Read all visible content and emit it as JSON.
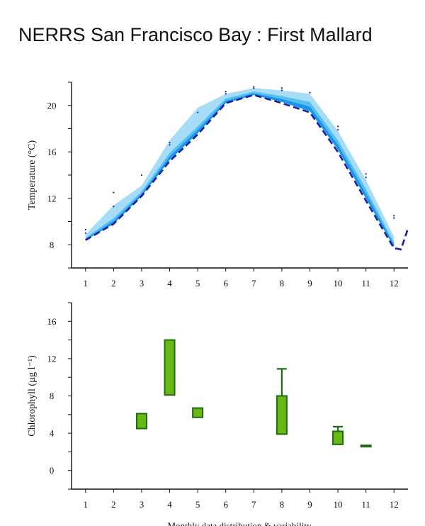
{
  "title": "NERRS San Francisco Bay : First Mallard",
  "caption": "Monthly data distribution & variability",
  "colors": {
    "band_light": "#a6dcf5",
    "band_mid": "#56bff0",
    "band_dark": "#1797e6",
    "dashed_line": "#1b1fa8",
    "dots": "#1b1fa8",
    "box_fill": "#6ab814",
    "box_stroke": "#1d6b12"
  },
  "chart_data": [
    {
      "type": "area",
      "ylabel": "Temperature (°C)",
      "xlabel": "",
      "x_ticks": [
        1,
        2,
        3,
        4,
        5,
        6,
        7,
        8,
        9,
        10,
        11,
        12
      ],
      "y_ticks": [
        8,
        12,
        16,
        20
      ],
      "xlim": [
        0.5,
        12.5
      ],
      "ylim": [
        6,
        22
      ],
      "x": [
        1,
        2,
        3,
        4,
        5,
        6,
        7,
        8,
        9,
        10,
        11,
        12
      ],
      "series": [
        {
          "values_min": [
            8.4,
            9.8,
            12.2,
            15.3,
            17.6,
            20.2,
            20.9,
            20.3,
            19.5,
            16.2,
            12.0,
            7.8
          ]
        },
        {
          "values_max": [
            8.9,
            11.4,
            13.1,
            17.0,
            19.8,
            21.0,
            21.5,
            21.3,
            21.0,
            17.8,
            13.6,
            8.7
          ]
        },
        {
          "values_mid": [
            8.6,
            10.3,
            12.6,
            15.9,
            18.2,
            20.6,
            21.2,
            20.8,
            20.3,
            17.0,
            12.8,
            8.2
          ]
        }
      ],
      "dashed_line": {
        "x": [
          1,
          2,
          3,
          4,
          5,
          6,
          7,
          8,
          9,
          10,
          11,
          12,
          12.25,
          12.5
        ],
        "y": [
          8.4,
          9.8,
          12.2,
          15.2,
          17.5,
          20.2,
          20.9,
          20.2,
          19.4,
          16.0,
          11.8,
          7.7,
          7.6,
          9.4
        ]
      },
      "scatter_points": [
        {
          "x": 1,
          "y": 9.3
        },
        {
          "x": 1,
          "y": 9.0
        },
        {
          "x": 2,
          "y": 12.5
        },
        {
          "x": 2,
          "y": 11.3
        },
        {
          "x": 3,
          "y": 14.0
        },
        {
          "x": 4,
          "y": 16.8
        },
        {
          "x": 4,
          "y": 16.6
        },
        {
          "x": 5,
          "y": 19.4
        },
        {
          "x": 6,
          "y": 21.2
        },
        {
          "x": 6,
          "y": 21.0
        },
        {
          "x": 7,
          "y": 21.6
        },
        {
          "x": 7,
          "y": 21.5
        },
        {
          "x": 8,
          "y": 21.5
        },
        {
          "x": 8,
          "y": 21.3
        },
        {
          "x": 9,
          "y": 21.1
        },
        {
          "x": 10,
          "y": 18.2
        },
        {
          "x": 10,
          "y": 17.9
        },
        {
          "x": 11,
          "y": 14.1
        },
        {
          "x": 11,
          "y": 13.8
        },
        {
          "x": 12,
          "y": 10.5
        },
        {
          "x": 12,
          "y": 10.3
        }
      ]
    },
    {
      "type": "box",
      "ylabel": "Chlorophyll (µg l⁻¹)",
      "xlabel": "Monthly data distribution & variability",
      "x_ticks": [
        1,
        2,
        3,
        4,
        5,
        6,
        7,
        8,
        9,
        10,
        11,
        12
      ],
      "y_ticks": [
        0,
        4,
        8,
        12,
        16
      ],
      "xlim": [
        0.5,
        12.5
      ],
      "ylim": [
        -2,
        18
      ],
      "boxes": [
        {
          "month": 3,
          "q1": 4.5,
          "q3": 6.1
        },
        {
          "month": 4,
          "q1": 8.1,
          "q3": 14.0
        },
        {
          "month": 5,
          "q1": 5.7,
          "q3": 6.7
        },
        {
          "month": 8,
          "q1": 3.9,
          "q3": 8.0,
          "whisker_high": 10.9
        },
        {
          "month": 10,
          "q1": 2.8,
          "q3": 4.2,
          "whisker_high": 4.7
        },
        {
          "month": 11,
          "q1": 2.6,
          "q3": 2.7
        }
      ]
    }
  ]
}
